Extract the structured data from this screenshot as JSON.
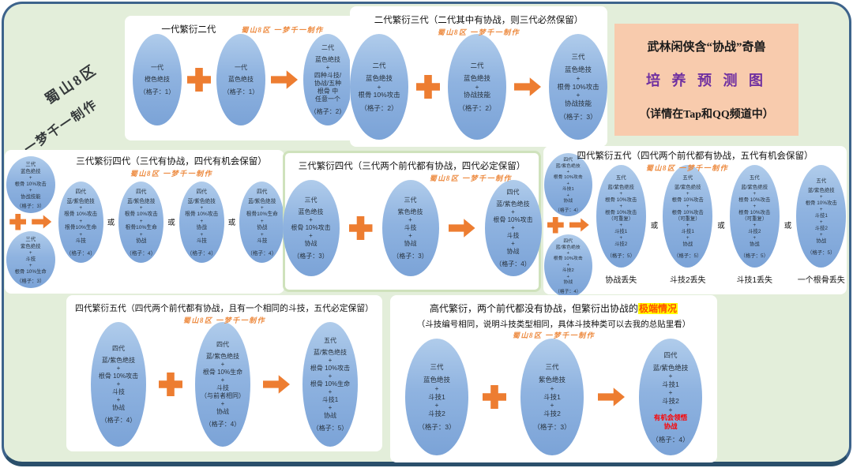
{
  "page": {
    "watermark": "蜀山8区  一梦千一制作",
    "side_credit": {
      "line1": "蜀山8区",
      "line2": "一梦千一制作"
    },
    "colors": {
      "background": "#e3eeda",
      "frame_border": "#3d638b",
      "panel": "#ffffff",
      "ellipse_top": "#b0cceb",
      "ellipse_bottom": "#7ba3d7",
      "accent_orange": "#ed7d31",
      "watermark_orange": "#ed8a3f",
      "title_box_bg": "#f8cbad",
      "title_purple": "#7030a0",
      "highlight_bg": "#ffff00",
      "highlight_text": "#ff4f00",
      "red_text": "#ff0000"
    }
  },
  "title_box": {
    "line1": "武林闲侠含“协战”奇兽",
    "line2": "培 养 预 测 图",
    "line3": "（详情在Tap和QQ频道中）"
  },
  "panels": [
    {
      "title": "一代繁衍二代",
      "nodes": [
        {
          "type": "ellipse",
          "gen": "一代",
          "lines": "橙色绝技",
          "slot": "（格子：1）"
        },
        {
          "type": "plus"
        },
        {
          "type": "ellipse",
          "gen": "一代",
          "lines": "蓝色绝技",
          "slot": "（格子：1）"
        },
        {
          "type": "arrow"
        },
        {
          "type": "ellipse",
          "gen": "二代",
          "lines": "蓝色绝技\n+\n四种斗技/\n协战/五种\n根骨 中\n任意一个",
          "slot": "（格子：2）"
        }
      ]
    },
    {
      "title": "二代繁衍三代（二代其中有协战，则三代必然保留）",
      "nodes": [
        {
          "type": "ellipse",
          "gen": "二代",
          "lines": "蓝色绝技\n+\n根骨 10%攻击",
          "slot": "（格子：2）"
        },
        {
          "type": "plus"
        },
        {
          "type": "ellipse",
          "gen": "二代",
          "lines": "蓝色绝技\n+\n协战技能",
          "slot": "（格子：2）"
        },
        {
          "type": "arrow"
        },
        {
          "type": "ellipse",
          "gen": "三代",
          "lines": "蓝色绝技\n+\n根骨 10%攻击\n+\n协战技能",
          "slot": "（格子：3）"
        }
      ]
    },
    {
      "title": "三代繁衍四代（三代有协战，四代有机会保留）",
      "nodes": [
        {
          "type": "stack",
          "children": [
            {
              "type": "ellipse",
              "gen": "三代",
              "lines": "蓝色绝技\n+\n根骨 10%攻击\n+\n协战技能",
              "slot": "（格子：3）"
            },
            {
              "type": "plusarrow"
            },
            {
              "type": "ellipse",
              "gen": "三代",
              "lines": "紫色绝技\n+\n斗技\n+\n根骨 10%生命",
              "slot": "（格子：3）"
            }
          ]
        },
        {
          "type": "ellipse",
          "gen": "四代",
          "lines": "蓝/紫色绝技\n+\n根骨 10%攻击\n+\n根骨10%生命\n+\n斗技",
          "slot": "（格子：4）"
        },
        {
          "type": "or",
          "label": "或"
        },
        {
          "type": "ellipse",
          "gen": "四代",
          "lines": "蓝/紫色绝技\n+\n根骨 10%攻击\n+\n根骨10%生命\n+\n协战",
          "slot": "（格子：4）"
        },
        {
          "type": "or",
          "label": "或"
        },
        {
          "type": "ellipse",
          "gen": "四代",
          "lines": "蓝/紫色绝技\n+\n根骨 10%攻击\n+\n协战\n+\n斗技",
          "slot": "（格子：4）"
        },
        {
          "type": "or",
          "label": "或"
        },
        {
          "type": "ellipse",
          "gen": "四代",
          "lines": "蓝/紫色绝技\n+\n根骨10%生命\n+\n协战\n+\n斗技",
          "slot": "（格子：4）"
        }
      ]
    },
    {
      "title": "三代繁衍四代（三代两个前代都有协战，四代必定保留）",
      "nodes": [
        {
          "type": "ellipse",
          "gen": "三代",
          "lines": "蓝色绝技\n+\n根骨 10%攻击\n+\n协战",
          "slot": "（格子：3）"
        },
        {
          "type": "plus"
        },
        {
          "type": "ellipse",
          "gen": "三代",
          "lines": "紫色绝技\n+\n斗技\n+\n协战",
          "slot": "（格子：3）"
        },
        {
          "type": "arrow"
        },
        {
          "type": "ellipse",
          "gen": "四代",
          "lines": "蓝/紫色绝技\n+\n根骨 10%攻击\n+\n斗技\n+\n协战",
          "slot": "（格子：4）"
        }
      ]
    },
    {
      "title": "四代繁衍五代（四代两个前代都有协战，五代有机会保留）",
      "nodes": [
        {
          "type": "stack",
          "children": [
            {
              "type": "ellipse",
              "gen": "四代",
              "lines": "蓝/紫色绝技\n+\n根骨 10%攻击\n+\n斗技1\n+\n协战",
              "slot": "（格子：4）"
            },
            {
              "type": "plusarrow"
            },
            {
              "type": "ellipse",
              "gen": "四代",
              "lines": "蓝/紫色绝技\n+\n根骨 10%攻击\n+\n斗技2\n+\n协战",
              "slot": "（格子：4）"
            }
          ]
        },
        {
          "type": "ellipse",
          "gen": "五代",
          "lines": "蓝/紫色绝技\n+\n根骨 10%攻击\n+\n根骨 10%攻击\n（可重复）\n+\n斗技1\n+\n斗技2",
          "slot": "（格子：5）",
          "caption": "协战丢失"
        },
        {
          "type": "or",
          "label": "或"
        },
        {
          "type": "ellipse",
          "gen": "五代",
          "lines": "蓝/紫色绝技\n+\n根骨 10%攻击\n+\n根骨 10%攻击\n（可重复）\n+\n斗技1\n+\n协战",
          "slot": "（格子：5）",
          "caption": "斗技2丢失"
        },
        {
          "type": "or",
          "label": "或"
        },
        {
          "type": "ellipse",
          "gen": "五代",
          "lines": "蓝/紫色绝技\n+\n根骨 10%攻击\n+\n根骨 10%攻击\n（可重复）\n+\n斗技2\n+\n协战",
          "slot": "（格子：5）",
          "caption": "斗技1丢失"
        },
        {
          "type": "or",
          "label": "或"
        },
        {
          "type": "ellipse",
          "gen": "五代",
          "lines": "蓝/紫色绝技\n+\n根骨 10%攻击\n+\n斗技1\n+\n斗技2\n+\n协战",
          "slot": "（格子：5）",
          "caption": "一个根骨丢失"
        }
      ]
    },
    {
      "title": "四代繁衍五代（四代两个前代都有协战，且有一个相同的斗技，五代必定保留）",
      "nodes": [
        {
          "type": "ellipse",
          "gen": "四代",
          "lines": "蓝/紫色绝技\n+\n根骨 10%攻击\n+\n斗技\n+\n协战",
          "slot": "（格子：4）"
        },
        {
          "type": "plus"
        },
        {
          "type": "ellipse",
          "gen": "四代",
          "lines": "蓝/紫色绝技\n+\n根骨 10%生命\n+\n斗技\n（与前者相同）\n+\n协战",
          "slot": "（格子：4）"
        },
        {
          "type": "arrow"
        },
        {
          "type": "ellipse",
          "gen": "五代",
          "lines": "蓝/紫色绝技\n+\n根骨 10%攻击\n+\n根骨 10%生命\n+\n斗技1\n+\n协战",
          "slot": "（格子：5）"
        }
      ]
    },
    {
      "title": "高代繁衍，两个前代都没有协战，但繁衍出协战的",
      "title_highlight": "极端情况",
      "subtitle": "（斗技编号相同，说明斗技类型相同，具体斗技种类可以去我的总贴里看）",
      "nodes": [
        {
          "type": "ellipse",
          "gen": "三代",
          "lines": "蓝色绝技\n+\n斗技1\n+\n斗技2",
          "slot": "（格子：3）"
        },
        {
          "type": "plus"
        },
        {
          "type": "ellipse",
          "gen": "三代",
          "lines": "紫色绝技\n+\n斗技1\n+\n斗技2",
          "slot": "（格子：3）"
        },
        {
          "type": "arrow"
        },
        {
          "type": "ellipse",
          "gen": "四代",
          "lines": "蓝/紫色绝技\n+\n斗技1\n+\n斗技2\n+",
          "red": "有机会领悟\n协战",
          "slot": "（格子：4）"
        }
      ]
    }
  ]
}
